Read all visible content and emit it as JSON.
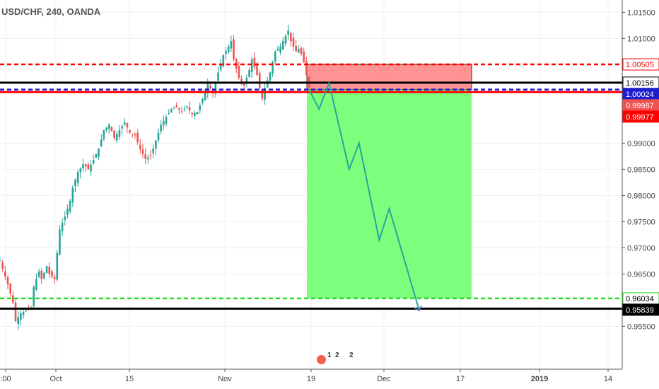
{
  "header": {
    "title": "USD/CHF, 240, OANDA"
  },
  "chart_data": {
    "type": "candlestick",
    "symbol": "USD/CHF",
    "interval": "240",
    "broker": "OANDA",
    "ylim": [
      0.951,
      1.016
    ],
    "y_ticks": [
      "1.01500",
      "1.01000",
      "0.99000",
      "0.98500",
      "0.98000",
      "0.97500",
      "0.97000",
      "0.96500",
      "0.95500"
    ],
    "x_ticks": [
      ":00",
      "Oct",
      "15",
      "Nov",
      "19",
      "Dec",
      "17",
      "2019",
      "14"
    ],
    "close_path": [
      [
        0,
        0.9675
      ],
      [
        3,
        0.963
      ],
      [
        5,
        0.9595
      ],
      [
        6,
        0.956
      ],
      [
        8,
        0.9575
      ],
      [
        10,
        0.958
      ],
      [
        12,
        0.9585
      ],
      [
        13,
        0.9625
      ],
      [
        15,
        0.9655
      ],
      [
        16,
        0.964
      ],
      [
        18,
        0.9665
      ],
      [
        19,
        0.965
      ],
      [
        21,
        0.964
      ],
      [
        22,
        0.969
      ],
      [
        23,
        0.9735
      ],
      [
        25,
        0.976
      ],
      [
        27,
        0.979
      ],
      [
        28,
        0.9815
      ],
      [
        30,
        0.9845
      ],
      [
        32,
        0.986
      ],
      [
        34,
        0.985
      ],
      [
        36,
        0.9868
      ],
      [
        38,
        0.989
      ],
      [
        40,
        0.9925
      ],
      [
        42,
        0.9935
      ],
      [
        44,
        0.991
      ],
      [
        46,
        0.9925
      ],
      [
        48,
        0.994
      ],
      [
        50,
        0.992
      ],
      [
        52,
        0.9915
      ],
      [
        54,
        0.9888
      ],
      [
        56,
        0.987
      ],
      [
        58,
        0.9875
      ],
      [
        60,
        0.9905
      ],
      [
        62,
        0.9935
      ],
      [
        64,
        0.995
      ],
      [
        66,
        0.9965
      ],
      [
        68,
        0.9968
      ],
      [
        70,
        0.996
      ],
      [
        72,
        0.997
      ],
      [
        74,
        0.9955
      ],
      [
        76,
        0.996
      ],
      [
        78,
        0.9985
      ],
      [
        80,
        1.0015
      ],
      [
        82,
        0.9995
      ],
      [
        84,
        1.0035
      ],
      [
        86,
        1.0068
      ],
      [
        88,
        1.0085
      ],
      [
        89,
        1.0095
      ],
      [
        90,
        1.006
      ],
      [
        92,
        1.0025
      ],
      [
        94,
        1.001
      ],
      [
        96,
        1.004
      ],
      [
        97,
        1.006
      ],
      [
        98,
        1.0045
      ],
      [
        99,
        1.003
      ],
      [
        100,
        1.0005
      ],
      [
        101,
        0.9985
      ],
      [
        102,
        1.0005
      ],
      [
        104,
        1.0035
      ],
      [
        106,
        1.0075
      ],
      [
        108,
        1.0085
      ],
      [
        110,
        1.0105
      ],
      [
        111,
        1.0115
      ],
      [
        112,
        1.0095
      ],
      [
        113,
        1.0085
      ],
      [
        114,
        1.0075
      ],
      [
        115,
        1.008
      ],
      [
        116,
        1.007
      ],
      [
        117,
        1.0055
      ],
      [
        118,
        1.003
      ],
      [
        119,
        1.0005
      ]
    ],
    "price_lines": [
      {
        "value": 1.00505,
        "label": "1.00505",
        "color": "#ff0000",
        "style": "dashed",
        "label_bg": "#ffffff",
        "label_fg": "#ff0000"
      },
      {
        "value": 1.00156,
        "label": "1.00156",
        "color": "#000000",
        "style": "solid",
        "label_bg": "#ffffff",
        "label_fg": "#000000"
      },
      {
        "value": 1.00024,
        "label": "1.00024",
        "color": "#1c1cd0",
        "style": "dashed",
        "label_bg": "#1c1cd0",
        "label_fg": "#ffffff"
      },
      {
        "value": 0.99977,
        "label": "0.99977",
        "color": "#ff0000",
        "style": "solid",
        "label_bg": "#ff0000",
        "label_fg": "#ffffff"
      },
      {
        "value": 0.96034,
        "label": "0.96034",
        "color": "#22dd22",
        "style": "dashed",
        "label_bg": "#ffffff",
        "label_fg": "#000000"
      },
      {
        "value": 0.95839,
        "label": "0.95839",
        "color": "#000000",
        "style": "solid",
        "label_bg": "#000000",
        "label_fg": "#ffffff"
      }
    ],
    "last_price": {
      "value": 0.99987,
      "label": "0.99987",
      "color": "#ef5350"
    },
    "short_position": {
      "entry": 1.00024,
      "stop": 1.00505,
      "target": 0.96034,
      "stop_zone_color": "#ff8080",
      "target_zone_color": "#66ff66"
    },
    "projection_path": [
      [
        0,
        1.0003
      ],
      [
        2,
        0.9965
      ],
      [
        4,
        1.0015
      ],
      [
        8,
        0.985
      ],
      [
        10,
        0.99
      ],
      [
        14,
        0.9715
      ],
      [
        16,
        0.9775
      ],
      [
        22,
        0.958
      ]
    ]
  },
  "events": {
    "counts": [
      "1",
      "2",
      "2"
    ]
  }
}
